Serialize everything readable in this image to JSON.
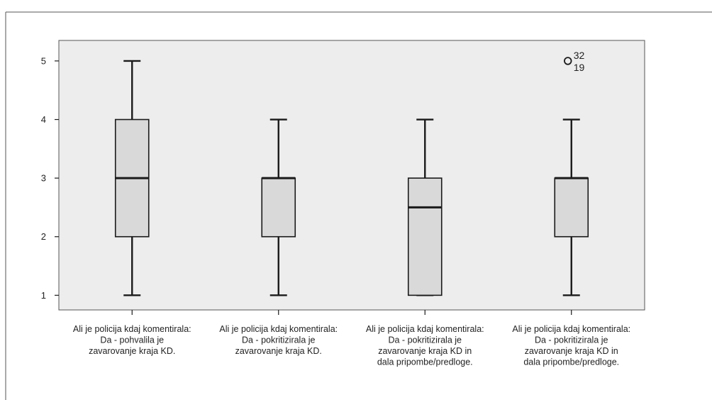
{
  "chart_data": {
    "type": "boxplot",
    "title": "",
    "xlabel": "",
    "ylabel": "",
    "ylim": [
      0.75,
      5.35
    ],
    "yticks": [
      1,
      2,
      3,
      4,
      5
    ],
    "grid": false,
    "colors": {
      "plot_background": "#ededed",
      "box_fill": "#d9d9d9",
      "stroke": "#1a1a1a",
      "frame": "#555555"
    },
    "categories": [
      [
        "Ali je policija kdaj komentirala:",
        "Da - pohvalila je",
        "zavarovanje kraja KD."
      ],
      [
        "Ali je policija kdaj komentirala:",
        "Da - pokritizirala je",
        "zavarovanje kraja KD."
      ],
      [
        "Ali je policija kdaj komentirala:",
        "Da - pokritizirala je",
        "zavarovanje kraja KD in",
        "dala pripombe/predloge."
      ],
      [
        "Ali je policija kdaj komentirala:",
        "Da - pokritizirala je",
        "zavarovanje kraja KD in",
        "dala pripombe/predloge."
      ]
    ],
    "boxes": [
      {
        "min": 1,
        "q1": 2,
        "median": 3,
        "q3": 4,
        "max": 5,
        "outliers": []
      },
      {
        "min": 1,
        "q1": 2,
        "median": 3,
        "q3": 3,
        "max": 4,
        "outliers": []
      },
      {
        "min": 1,
        "q1": 1,
        "median": 2.5,
        "q3": 3,
        "max": 4,
        "outliers": []
      },
      {
        "min": 1,
        "q1": 2,
        "median": 3,
        "q3": 3,
        "max": 4,
        "outliers": [
          {
            "value": 5,
            "labels": [
              "32",
              "19"
            ]
          }
        ]
      }
    ]
  }
}
